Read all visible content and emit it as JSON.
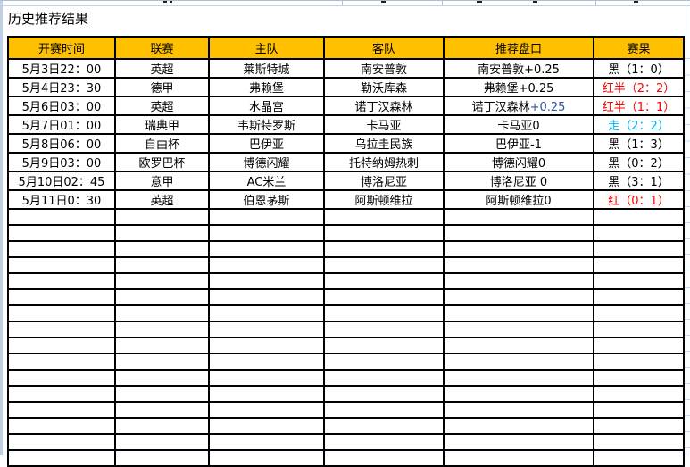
{
  "title": "历史推荐结果",
  "colors": {
    "header_bg": "#FFC000",
    "result_black": "#000000",
    "result_red": "#FF0000",
    "result_cyan": "#00B0F0",
    "handicap_blue": "#2F5496",
    "grid_black": "#000000",
    "grid_light": "#C3D3E8"
  },
  "table": {
    "headers": [
      "开赛时间",
      "联赛",
      "主队",
      "客队",
      "推荐盘口",
      "赛果"
    ],
    "rows": [
      {
        "time": "5月3日22：00",
        "league": "英超",
        "home": "莱斯特城",
        "away": "南安普敦",
        "handicap": [
          {
            "text": "南安普敦+0.25",
            "color": "#000000"
          }
        ],
        "result": {
          "text": "黑（1：0）",
          "color": "#000000"
        }
      },
      {
        "time": "5月4日23：30",
        "league": "德甲",
        "home": "弗赖堡",
        "away": "勒沃库森",
        "handicap": [
          {
            "text": "弗赖堡+0.25",
            "color": "#000000"
          }
        ],
        "result": {
          "text": "红半（2：2）",
          "color": "#FF0000"
        }
      },
      {
        "time": "5月6日03：00",
        "league": "英超",
        "home": "水晶宫",
        "away": "诺丁汉森林",
        "handicap": [
          {
            "text": "诺丁汉森林",
            "color": "#000000"
          },
          {
            "text": "+0.25",
            "color": "#2F5496"
          }
        ],
        "result": {
          "text": "红半（1：1）",
          "color": "#FF0000"
        }
      },
      {
        "time": "5月7日01：00",
        "league": "瑞典甲",
        "home": "韦斯特罗斯",
        "away": "卡马亚",
        "handicap": [
          {
            "text": "卡马亚0",
            "color": "#000000"
          }
        ],
        "result": {
          "text": "走（2：2）",
          "color": "#00B0F0"
        }
      },
      {
        "time": "5月8日06：00",
        "league": "自由杯",
        "home": "巴伊亚",
        "away": "乌拉圭民族",
        "handicap": [
          {
            "text": "巴伊亚-1",
            "color": "#000000"
          }
        ],
        "result": {
          "text": "黑（1：3）",
          "color": "#000000"
        }
      },
      {
        "time": "5月9日03：00",
        "league": "欧罗巴杯",
        "home": "博德闪耀",
        "away": "托特纳姆热刺",
        "handicap": [
          {
            "text": "博德闪耀0",
            "color": "#000000"
          }
        ],
        "result": {
          "text": "黑（0：2）",
          "color": "#000000"
        }
      },
      {
        "time": "5月10日02：45",
        "league": "意甲",
        "home": "AC米兰",
        "away": "博洛尼亚",
        "handicap": [
          {
            "text": "博洛尼亚 0",
            "color": "#000000"
          }
        ],
        "result": {
          "text": "黑（3：1）",
          "color": "#000000"
        }
      },
      {
        "time": "5月11日0：30",
        "league": "英超",
        "home": "伯恩茅斯",
        "away": "阿斯顿维拉",
        "handicap": [
          {
            "text": "阿斯顿维拉0",
            "color": "#000000"
          }
        ],
        "result": {
          "text": "红（0：1）",
          "color": "#FF0000"
        }
      }
    ],
    "empty_rows": 16
  }
}
